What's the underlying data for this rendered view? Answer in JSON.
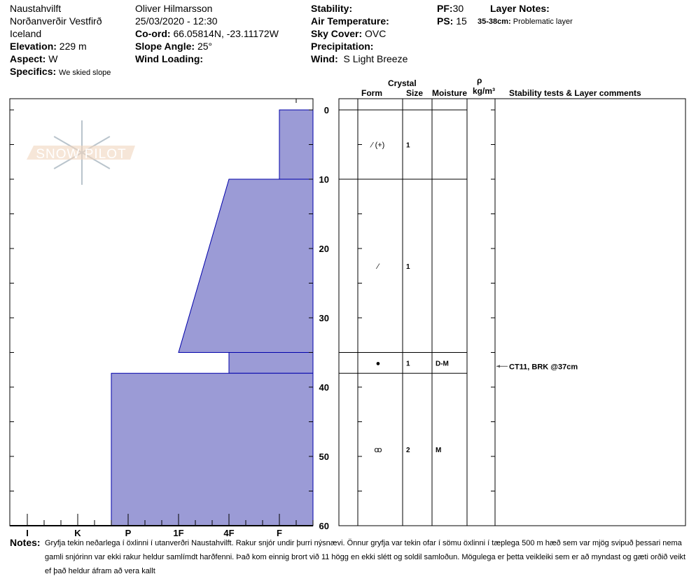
{
  "site": {
    "name": "Naustahvilft",
    "region": "Norðanverðir Vestfirð",
    "country": "Iceland",
    "elevation_label": "Elevation:",
    "elevation": "229 m",
    "aspect_label": "Aspect:",
    "aspect": "W",
    "specifics_label": "Specifics:",
    "specifics": "We skied slope"
  },
  "observer": {
    "name": "Oliver Hilmarsson",
    "datetime": "25/03/2020 - 12:30",
    "coord_label": "Co-ord:",
    "coord": "66.05814N, -23.11172W",
    "slope_label": "Slope Angle:",
    "slope": "25°",
    "wind_loading_label": "Wind Loading:",
    "wind_loading": ""
  },
  "conditions": {
    "stability_label": "Stability:",
    "stability": "",
    "air_temp_label": "Air Temperature:",
    "air_temp": "",
    "sky_label": "Sky Cover:",
    "sky": "OVC",
    "precip_label": "Precipitation:",
    "precip": "",
    "wind_label": "Wind:",
    "wind": "S Light Breeze"
  },
  "pit": {
    "pf_label": "PF:",
    "pf": "30",
    "ps_label": "PS:",
    "ps": "15",
    "layer_notes_label": "Layer Notes:",
    "layer_note_range": "35-38cm:",
    "layer_note": "Problematic layer"
  },
  "table_headers": {
    "crystal": "Crystal",
    "form": "Form",
    "size": "Size",
    "moisture": "Moisture",
    "rho": "ρ",
    "density_unit": "kg/m³",
    "comments": "Stability tests & Layer comments"
  },
  "logo_text": "SNOW PILOT",
  "notes_label": "Notes:",
  "notes": "Gryfja tekin neðarlega í öxlinni í utanverðri Naustahvilft. Rakur snjór undir þurri nýsnævi. Önnur gryfja var tekin ofar í sömu öxlinni í tæplega 500 m hæð sem var mjög svipuð þessari nema gamli snjórinn var ekki rakur heldur samlímdt harðfenni. Það kom einnig brort við 11 högg en ekki slétt og soldil samloðun. Mögulega er þetta veikleiki sem er að myndast og gæti orðið veikt ef það heldur áfram að vera kallt",
  "colors": {
    "layer_fill": "#9b9bd6",
    "layer_stroke": "#0000aa",
    "logo_text": "#f0d5be",
    "logo_flake": "#b9c4cc"
  },
  "chart_data": {
    "type": "area",
    "ylabel": "",
    "xlabel": "",
    "ylim": [
      0,
      60
    ],
    "y_ticks": [
      0,
      10,
      20,
      30,
      40,
      50,
      60
    ],
    "hardness_ticks": [
      "I",
      "K",
      "P",
      "1F",
      "4F",
      "F"
    ],
    "layers": [
      {
        "top": 0,
        "bottom": 10,
        "hardness_top": "F",
        "hardness_bottom": "F",
        "form": "⁄ (+)",
        "size": "1",
        "moisture": ""
      },
      {
        "top": 10,
        "bottom": 35,
        "hardness_top": "4F",
        "hardness_bottom": "1F",
        "form": "⁄",
        "size": "1",
        "moisture": ""
      },
      {
        "top": 35,
        "bottom": 38,
        "hardness_top": "4F",
        "hardness_bottom": "4F",
        "form": "●",
        "size": "1",
        "moisture": "D-M"
      },
      {
        "top": 38,
        "bottom": 60,
        "hardness_top": "P-",
        "hardness_bottom": "P-",
        "form": "ꝏ",
        "size": "2",
        "moisture": "M"
      }
    ],
    "stability_tests": [
      {
        "depth": 37,
        "label": "CT11, BRK @37cm"
      }
    ]
  }
}
